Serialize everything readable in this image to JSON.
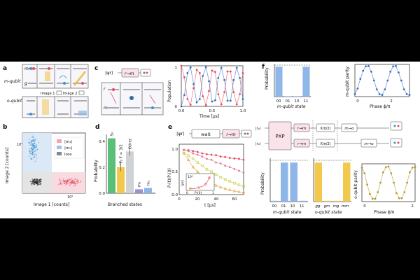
{
  "panel_labels": {
    "a": "a",
    "b": "b",
    "c": "c",
    "d": "d",
    "e": "e",
    "f": "f"
  },
  "panel_a": {
    "m_qubit": "m-qubit",
    "o_qubit": "o-qubit",
    "level_m": "m",
    "level_g": "g",
    "image1": "Image 1",
    "image2": "Image 2"
  },
  "panel_b": {
    "ylabel": "Image 2 [counts]",
    "xlabel": "Image 1 [counts]",
    "x_tick": "10²",
    "y_tick": "10²",
    "legend": [
      "|m₁⟩",
      "|m₀⟩",
      "loss"
    ],
    "colors": {
      "m1": "#e84a5f",
      "m0": "#3a8fd1",
      "loss": "#222222"
    }
  },
  "panel_c": {
    "psi": "|ψr⟩",
    "gate": "r→m",
    "level_r": "r",
    "level_m": "m",
    "ylabel": "Population",
    "xlabel": "Time [μs]",
    "y_ticks": [
      "0",
      "1"
    ],
    "x_ticks": [
      "0.0",
      "0.5",
      "1.0"
    ]
  },
  "panel_d": {
    "ylabel": "Probability",
    "xlabel": "Branched states",
    "y_ticks": [
      "0.0",
      "0.2",
      "0.4"
    ],
    "labels": [
      "S₀",
      "³P₂ F = 3/2",
      "Other",
      "m₀",
      "m₁"
    ]
  },
  "panel_e": {
    "psi": "|ψr⟩",
    "wait": "wait",
    "gate": "r→m",
    "ylabel": "Pᵣ(t)/Pᵣ(0)",
    "xlabel": "t [μs]",
    "y_ticks": [
      "0.0",
      "0.5",
      "1.0"
    ],
    "x_ticks": [
      "0",
      "20",
      "40",
      "60"
    ],
    "inset_ylabel": "[μs]",
    "inset_xlabel": "Pᵣ(0)",
    "inset_y_tick": "10³",
    "inset_x_ticks": [
      "0",
      "1"
    ]
  },
  "panel_f": {
    "top_bar": {
      "ylabel": "Probability",
      "xlabel": "m-qubit state",
      "x_ticks": [
        "00",
        "01",
        "10",
        "11"
      ]
    },
    "top_parity": {
      "ylabel": "m-qubit parity",
      "xlabel": "Phase ϕ/π",
      "x_ticks": [
        "0",
        "2"
      ]
    },
    "circuit": {
      "ket_top": "|r₀⟩",
      "ket_bottom": "|r₀⟩",
      "pxp": "PXP",
      "gate_rm": "r→m",
      "gate_x": "X(π/2)",
      "gate_mo": "m→o"
    },
    "bottom_bar_m": {
      "ylabel": "Probability",
      "xlabel": "m-qubit state",
      "x_ticks": [
        "00",
        "01",
        "10",
        "11"
      ]
    },
    "bottom_bar_o": {
      "xlabel": "o-qubit state",
      "x_ticks": [
        "gg",
        "gm",
        "mg",
        "mm"
      ]
    },
    "bottom_parity": {
      "ylabel": "o-qubit parity",
      "xlabel": "Phase ϕ/π",
      "x_ticks": [
        "0",
        "2"
      ]
    }
  },
  "chart_data": [
    {
      "type": "line",
      "title": "",
      "xlabel": "Time [μs]",
      "ylabel": "Population",
      "xlim": [
        0,
        1
      ],
      "ylim": [
        0,
        1
      ],
      "series": [
        {
          "name": "",
          "color": "#e84a5f",
          "x": [
            0,
            0.05,
            0.1,
            0.15,
            0.2,
            0.25,
            0.3,
            0.35,
            0.4,
            0.45,
            0.5,
            0.55,
            0.6,
            0.65,
            0.7,
            0.75,
            0.8,
            0.85,
            0.9,
            0.95,
            1.0
          ],
          "values": [
            1.0,
            0.72,
            0.18,
            0.04,
            0.45,
            0.9,
            0.82,
            0.25,
            0.03,
            0.38,
            0.88,
            0.85,
            0.3,
            0.05,
            0.35,
            0.86,
            0.86,
            0.35,
            0.05,
            0.3,
            0.82
          ]
        },
        {
          "name": "",
          "color": "#3a6fc4",
          "x": [
            0,
            0.05,
            0.1,
            0.15,
            0.2,
            0.25,
            0.3,
            0.35,
            0.4,
            0.45,
            0.5,
            0.55,
            0.6,
            0.65,
            0.7,
            0.75,
            0.8,
            0.85,
            0.9,
            0.95,
            1.0
          ],
          "values": [
            0.0,
            0.28,
            0.82,
            0.96,
            0.55,
            0.1,
            0.18,
            0.75,
            0.97,
            0.62,
            0.12,
            0.15,
            0.7,
            0.95,
            0.65,
            0.14,
            0.14,
            0.65,
            0.95,
            0.7,
            0.18
          ]
        }
      ]
    },
    {
      "type": "bar",
      "title": "",
      "xlabel": "Branched states",
      "ylabel": "Probability",
      "ylim": [
        0,
        0.45
      ],
      "categories": [
        "S₀",
        "³P₂ F = 3/2",
        "Other",
        "m₀",
        "m₁"
      ],
      "values": [
        0.42,
        0.2,
        0.32,
        0.03,
        0.04
      ],
      "colors": [
        "#5bbf7a",
        "#f2c94c",
        "#cfd2d6",
        "#9b8fd6",
        "#8fb6e8"
      ]
    },
    {
      "type": "scatter",
      "title": "",
      "xlabel": "t [μs]",
      "ylabel": "Pᵣ(t)/Pᵣ(0)",
      "xlim": [
        0,
        70
      ],
      "ylim": [
        0,
        1.1
      ],
      "series": [
        {
          "name": "",
          "color": "#e84a5f",
          "x": [
            5,
            10,
            15,
            20,
            25,
            30,
            35,
            40,
            45,
            50,
            55,
            60,
            65,
            70
          ],
          "values": [
            0.98,
            0.97,
            0.95,
            0.93,
            0.9,
            0.88,
            0.87,
            0.86,
            0.83,
            0.82,
            0.8,
            0.79,
            0.78,
            0.76
          ]
        },
        {
          "name": "",
          "color": "#e07a9a",
          "x": [
            5,
            10,
            15,
            20,
            25,
            30,
            35,
            40,
            45,
            50,
            55,
            60,
            65,
            70
          ],
          "values": [
            0.98,
            0.95,
            0.9,
            0.87,
            0.83,
            0.78,
            0.76,
            0.7,
            0.68,
            0.63,
            0.6,
            0.56,
            0.52,
            0.48
          ]
        },
        {
          "name": "",
          "color": "#c7d04a",
          "x": [
            5,
            10,
            15,
            20,
            25,
            30,
            35,
            40,
            45,
            50,
            55,
            60,
            65,
            70
          ],
          "values": [
            0.93,
            0.85,
            0.78,
            0.7,
            0.63,
            0.55,
            0.5,
            0.44,
            0.38,
            0.33,
            0.29,
            0.25,
            0.21,
            0.18
          ]
        },
        {
          "name": "",
          "color": "#e8a040",
          "x": [
            5,
            10,
            15,
            20,
            25,
            30,
            35,
            40,
            45,
            50,
            55,
            60,
            65,
            70
          ],
          "values": [
            0.9,
            0.76,
            0.6,
            0.5,
            0.4,
            0.33,
            0.27,
            0.2,
            0.16,
            0.13,
            0.1,
            0.08,
            0.06,
            0.05
          ]
        }
      ]
    },
    {
      "type": "bar",
      "title": "",
      "xlabel": "m-qubit state",
      "ylabel": "Probability",
      "ylim": [
        0,
        1
      ],
      "categories": [
        "00",
        "01",
        "10",
        "11"
      ],
      "values": [
        0.97,
        0.01,
        0.01,
        0.97
      ],
      "color": "#8fb6e8"
    },
    {
      "type": "line",
      "title": "",
      "xlabel": "Phase ϕ/π",
      "ylabel": "m-qubit parity",
      "xlim": [
        0,
        2
      ],
      "ylim": [
        -1,
        1
      ],
      "series": [
        {
          "name": "",
          "color": "#3a6fc4",
          "x": [
            0,
            0.1,
            0.2,
            0.3,
            0.4,
            0.5,
            0.6,
            0.7,
            0.8,
            0.9,
            1.0,
            1.1,
            1.2,
            1.3,
            1.4,
            1.5,
            1.6,
            1.7,
            1.8,
            1.9,
            2.0
          ],
          "values": [
            -0.85,
            -0.5,
            0.1,
            0.6,
            0.88,
            0.9,
            0.55,
            0.0,
            -0.55,
            -0.85,
            -0.9,
            -0.55,
            0.0,
            0.55,
            0.88,
            0.9,
            0.5,
            0.0,
            -0.55,
            -0.85,
            -0.9
          ]
        }
      ]
    },
    {
      "type": "bar",
      "title": "",
      "xlabel": "m-qubit state",
      "ylabel": "Probability",
      "ylim": [
        0,
        0.5
      ],
      "categories": [
        "00",
        "01",
        "10",
        "11"
      ],
      "values": [
        0.01,
        0.48,
        0.48,
        0.01
      ],
      "color": "#8fb6e8"
    },
    {
      "type": "bar",
      "title": "",
      "xlabel": "o-qubit state",
      "ylabel": "",
      "ylim": [
        0,
        0.5
      ],
      "categories": [
        "gg",
        "gm",
        "mg",
        "mm"
      ],
      "values": [
        0.48,
        0.01,
        0.01,
        0.48
      ],
      "color": "#f2c94c"
    },
    {
      "type": "line",
      "title": "",
      "xlabel": "Phase ϕ/π",
      "ylabel": "o-qubit parity",
      "xlim": [
        0,
        2
      ],
      "ylim": [
        -1,
        1
      ],
      "series": [
        {
          "name": "",
          "color": "#b59a2e",
          "x": [
            0,
            0.1,
            0.2,
            0.3,
            0.4,
            0.5,
            0.6,
            0.7,
            0.8,
            0.9,
            1.0,
            1.1,
            1.2,
            1.3,
            1.4,
            1.5,
            1.6,
            1.7,
            1.8,
            1.9,
            2.0
          ],
          "values": [
            0.8,
            0.5,
            -0.1,
            -0.6,
            -0.85,
            -0.85,
            -0.5,
            0.0,
            0.55,
            0.82,
            0.85,
            0.5,
            0.0,
            -0.55,
            -0.82,
            -0.82,
            -0.5,
            0.0,
            0.55,
            0.8,
            0.82
          ]
        }
      ]
    }
  ]
}
